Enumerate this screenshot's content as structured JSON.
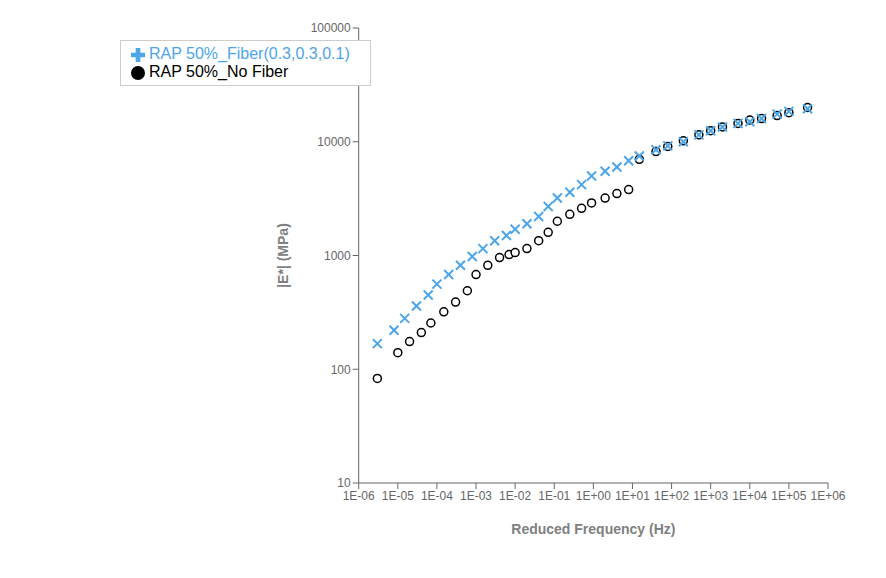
{
  "chart_data": {
    "type": "scatter",
    "xlabel": "Reduced Frequency (Hz)",
    "ylabel": "|E*| (MPa)",
    "log": true,
    "xlim": [
      1e-06,
      1000000.0
    ],
    "ylim": [
      10,
      100000
    ],
    "xticks": [
      {
        "value": 1e-06,
        "label": "1E-06"
      },
      {
        "value": 1e-05,
        "label": "1E-05"
      },
      {
        "value": 0.0001,
        "label": "1E-04"
      },
      {
        "value": 0.001,
        "label": "1E-03"
      },
      {
        "value": 0.01,
        "label": "1E-02"
      },
      {
        "value": 0.1,
        "label": "1E-01"
      },
      {
        "value": 1,
        "label": "1E+00"
      },
      {
        "value": 10,
        "label": "1E+01"
      },
      {
        "value": 100,
        "label": "1E+02"
      },
      {
        "value": 1000,
        "label": "1E+03"
      },
      {
        "value": 10000,
        "label": "1E+04"
      },
      {
        "value": 100000,
        "label": "1E+05"
      },
      {
        "value": 1000000,
        "label": "1E+06"
      }
    ],
    "yticks": [
      10,
      100,
      1000,
      10000,
      100000
    ],
    "grid": false,
    "legend": "upper left",
    "series": [
      {
        "name": "RAP 50%_No Fiber",
        "color": "black",
        "marker": "circle",
        "x": [
          3e-06,
          1e-05,
          2e-05,
          4e-05,
          7e-05,
          0.00015,
          0.0003,
          0.0006,
          0.001,
          0.002,
          0.004,
          0.007,
          0.01,
          0.02,
          0.04,
          0.07,
          0.12,
          0.25,
          0.5,
          0.9,
          2.0,
          4.0,
          8.0,
          15.0,
          40.0,
          80.0,
          200.0,
          500.0,
          1000.0,
          2000.0,
          5000.0,
          10000.0,
          20000.0,
          50000.0,
          100000.0,
          300000.0
        ],
        "values": [
          83,
          140,
          175,
          210,
          255,
          320,
          390,
          490,
          680,
          820,
          960,
          1020,
          1060,
          1150,
          1350,
          1600,
          2000,
          2300,
          2600,
          2900,
          3200,
          3500,
          3800,
          7000,
          8200,
          9100,
          10200,
          11500,
          12500,
          13500,
          14500,
          15500,
          16000,
          17000,
          18000,
          20000
        ]
      },
      {
        "name": "RAP 50%_Fiber(0.3,0.3,0.1)",
        "color": "#4da6e8",
        "marker": "x",
        "x": [
          3e-06,
          8e-06,
          1.5e-05,
          3e-05,
          6e-05,
          0.0001,
          0.0002,
          0.0004,
          0.0008,
          0.0015,
          0.003,
          0.006,
          0.01,
          0.02,
          0.04,
          0.07,
          0.12,
          0.25,
          0.5,
          0.9,
          2.0,
          4.0,
          8.0,
          15.0,
          40.0,
          80.0,
          200.0,
          500.0,
          1000.0,
          2000.0,
          5000.0,
          10000.0,
          20000.0,
          50000.0,
          100000.0,
          300000.0
        ],
        "values": [
          168,
          220,
          280,
          360,
          450,
          560,
          680,
          820,
          980,
          1150,
          1350,
          1500,
          1700,
          1900,
          2200,
          2700,
          3200,
          3600,
          4200,
          5000,
          5500,
          6000,
          6800,
          7500,
          8500,
          9200,
          10000,
          11500,
          12500,
          13500,
          14500,
          15000,
          16000,
          17500,
          18500,
          19500
        ]
      }
    ]
  }
}
